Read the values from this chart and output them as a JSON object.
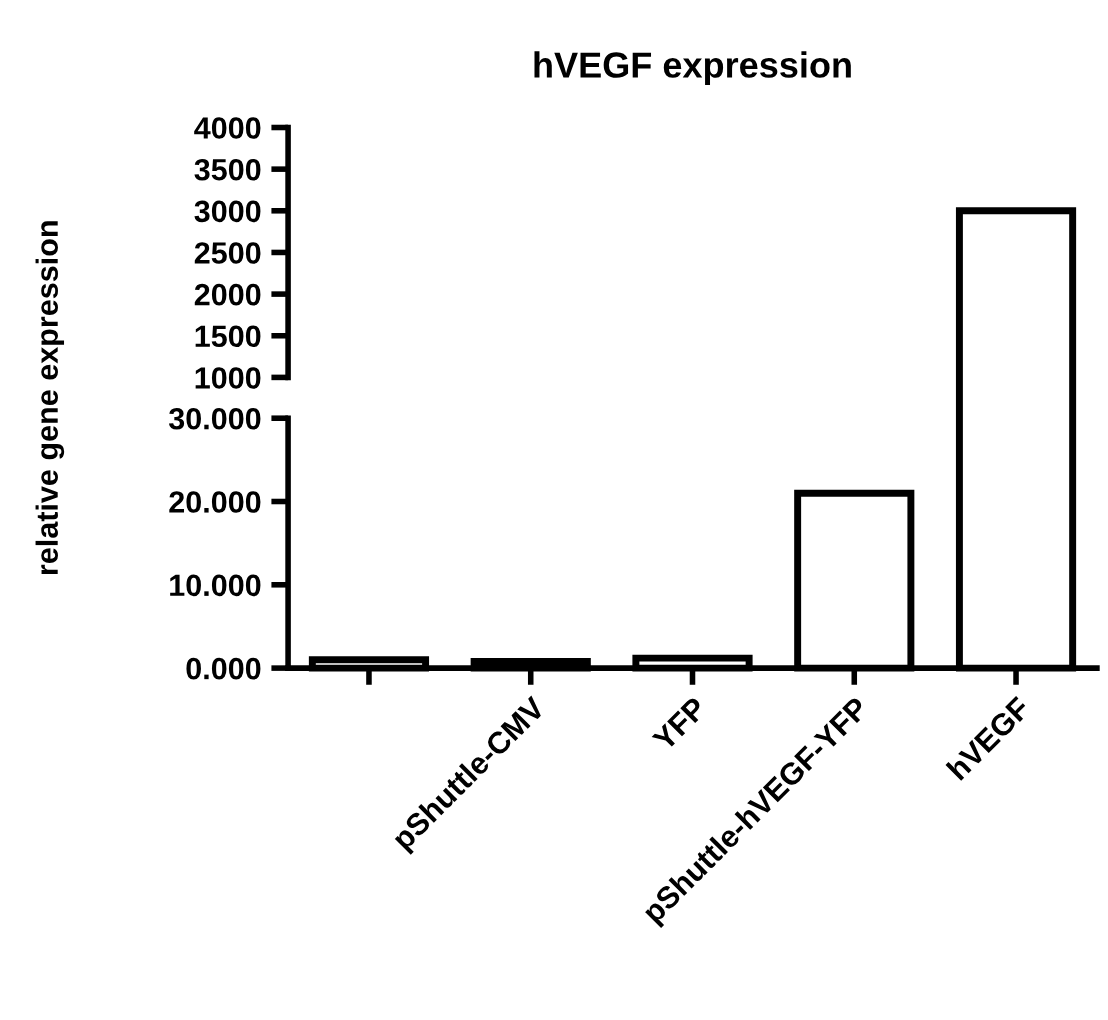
{
  "chart_data": [
    {
      "type": "bar",
      "title": "hVEGF expression",
      "categories": [
        null,
        null,
        null,
        null,
        null
      ],
      "series": [
        {
          "color": "#ffffff",
          "values": [
            null,
            null,
            null,
            null,
            3000
          ]
        }
      ],
      "ylim": [
        1000,
        4000
      ],
      "yticks": [
        1000,
        1500,
        2000,
        2500,
        3000,
        3500,
        4000
      ],
      "tick_labels": "y",
      "grid": false,
      "legend": false
    },
    {
      "type": "bar",
      "ylabel": "relative gene expression",
      "categories": [
        null,
        "pShuttle-CMV",
        "YFP",
        "pShuttle-hVEGF-YFP",
        "hVEGF"
      ],
      "series": [
        {
          "color": "#ffffff",
          "values": [
            1.0,
            0.8,
            1.2,
            21.0,
            null
          ]
        }
      ],
      "ylim": [
        0,
        30
      ],
      "yticks": [
        {
          "value": 0,
          "label": "0.000"
        },
        {
          "value": 10,
          "label": "10.000"
        },
        {
          "value": 20,
          "label": "20.000"
        },
        {
          "value": 30,
          "label": "30.000"
        }
      ],
      "grid": false,
      "legend": false
    }
  ]
}
